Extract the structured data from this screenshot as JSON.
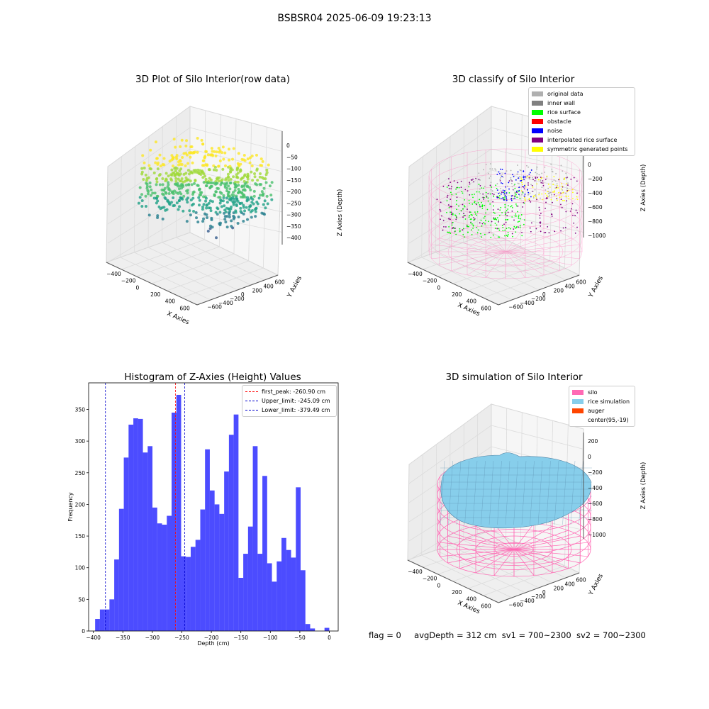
{
  "figure": {
    "suptitle": "BSBSR04 2025-06-09 19:23:13",
    "footer": {
      "flag": "flag = 0",
      "avg_depth": "avgDepth = 312 cm",
      "sv1": "sv1 = 700~2300",
      "sv2": "sv2 = 700~2300"
    }
  },
  "colors": {
    "hist_bar": "#0000ff",
    "peak_line": "#ff0000",
    "limit_line": "#0000cc",
    "silo_wire": "#ff69b4",
    "rice_sim": "#87ceeb",
    "auger": "#ff4500",
    "original": "#b0b0b0",
    "inner_wall": "#808080",
    "rice_surface": "#00ff00",
    "obstacle": "#ff0000",
    "noise": "#0000ff",
    "interp": "#800080",
    "symmetric": "#ffff00"
  },
  "panel_raw": {
    "title": "3D Plot of Silo Interior(row data)",
    "xlabel": "X Axies",
    "ylabel": "Y Axies",
    "zlabel": "Z Axies (Depth)",
    "x_ticks": [
      "−400",
      "−200",
      "0",
      "200",
      "400",
      "600"
    ],
    "y_ticks": [
      "−600",
      "−400",
      "−200",
      "0",
      "200",
      "400",
      "600"
    ],
    "z_ticks": [
      "0",
      "−50",
      "−100",
      "−150",
      "−200",
      "−250",
      "−300",
      "−350",
      "−400"
    ]
  },
  "panel_classify": {
    "title": "3D classify of Silo Interior",
    "xlabel": "X Axies",
    "ylabel": "Y Axies",
    "zlabel": "Z Axies (Depth)",
    "x_ticks": [
      "−400",
      "−200",
      "0",
      "200",
      "400",
      "600"
    ],
    "y_ticks": [
      "−600",
      "−400",
      "−200",
      "0",
      "200",
      "400",
      "600"
    ],
    "z_ticks": [
      "200",
      "0",
      "−200",
      "−400",
      "−600",
      "−800",
      "−1000"
    ],
    "legend": [
      {
        "label": "original data",
        "color": "#b0b0b0"
      },
      {
        "label": "inner wall",
        "color": "#808080"
      },
      {
        "label": "rice surface",
        "color": "#00ff00"
      },
      {
        "label": "obstacle",
        "color": "#ff0000"
      },
      {
        "label": "noise",
        "color": "#0000ff"
      },
      {
        "label": "interpolated rice surface",
        "color": "#800080"
      },
      {
        "label": "symmetric generated points",
        "color": "#ffff00"
      }
    ]
  },
  "panel_sim": {
    "title": "3D simulation of Silo Interior",
    "xlabel": "X Axies",
    "ylabel": "Y Axies",
    "zlabel": "Z Axies (Depth)",
    "x_ticks": [
      "−400",
      "−200",
      "0",
      "200",
      "400",
      "600"
    ],
    "y_ticks": [
      "−600",
      "−400",
      "−200",
      "0",
      "200",
      "400",
      "600"
    ],
    "z_ticks": [
      "200",
      "0",
      "−200",
      "−400",
      "−600",
      "−800",
      "−1000"
    ],
    "legend": [
      {
        "label": "silo",
        "color": "#ff69b4"
      },
      {
        "label": "rice simulation",
        "color": "#87ceeb"
      },
      {
        "label": "auger",
        "color": "#ff4500"
      },
      {
        "label": "center(95,-19)",
        "color": ""
      }
    ]
  },
  "chart_data": {
    "type": "bar",
    "title": "Histogram of Z-Axies (Height) Values",
    "xlabel": "Depth (cm)",
    "ylabel": "Frequency",
    "xlim": [
      -408,
      15
    ],
    "ylim": [
      0,
      392
    ],
    "x_ticks": [
      -400,
      -350,
      -300,
      -250,
      -200,
      -150,
      -100,
      -50,
      0
    ],
    "x_tick_labels": [
      "−400",
      "−350",
      "−300",
      "−250",
      "−200",
      "−150",
      "−100",
      "−50",
      "0"
    ],
    "y_ticks": [
      0,
      50,
      100,
      150,
      200,
      250,
      300,
      350
    ],
    "y_tick_labels": [
      "0",
      "50",
      "100",
      "150",
      "200",
      "250",
      "300",
      "350"
    ],
    "bin_start": -397,
    "bin_width": 8.1,
    "values": [
      19,
      34,
      34,
      50,
      113,
      193,
      274,
      326,
      336,
      335,
      282,
      292,
      195,
      170,
      168,
      182,
      345,
      373,
      118,
      117,
      133,
      144,
      192,
      287,
      222,
      200,
      185,
      252,
      310,
      342,
      84,
      122,
      165,
      292,
      122,
      245,
      107,
      78,
      110,
      147,
      128,
      116,
      227,
      96,
      11,
      4,
      0,
      0,
      5
    ],
    "vlines": [
      {
        "x": -260.9,
        "label": "first_peak: -260.90 cm",
        "color": "#ff0000"
      },
      {
        "x": -245.09,
        "label": "Upper_limit: -245.09 cm",
        "color": "#0000cc"
      },
      {
        "x": -379.49,
        "label": "Lower_limit: -379.49 cm",
        "color": "#0000cc"
      }
    ]
  }
}
